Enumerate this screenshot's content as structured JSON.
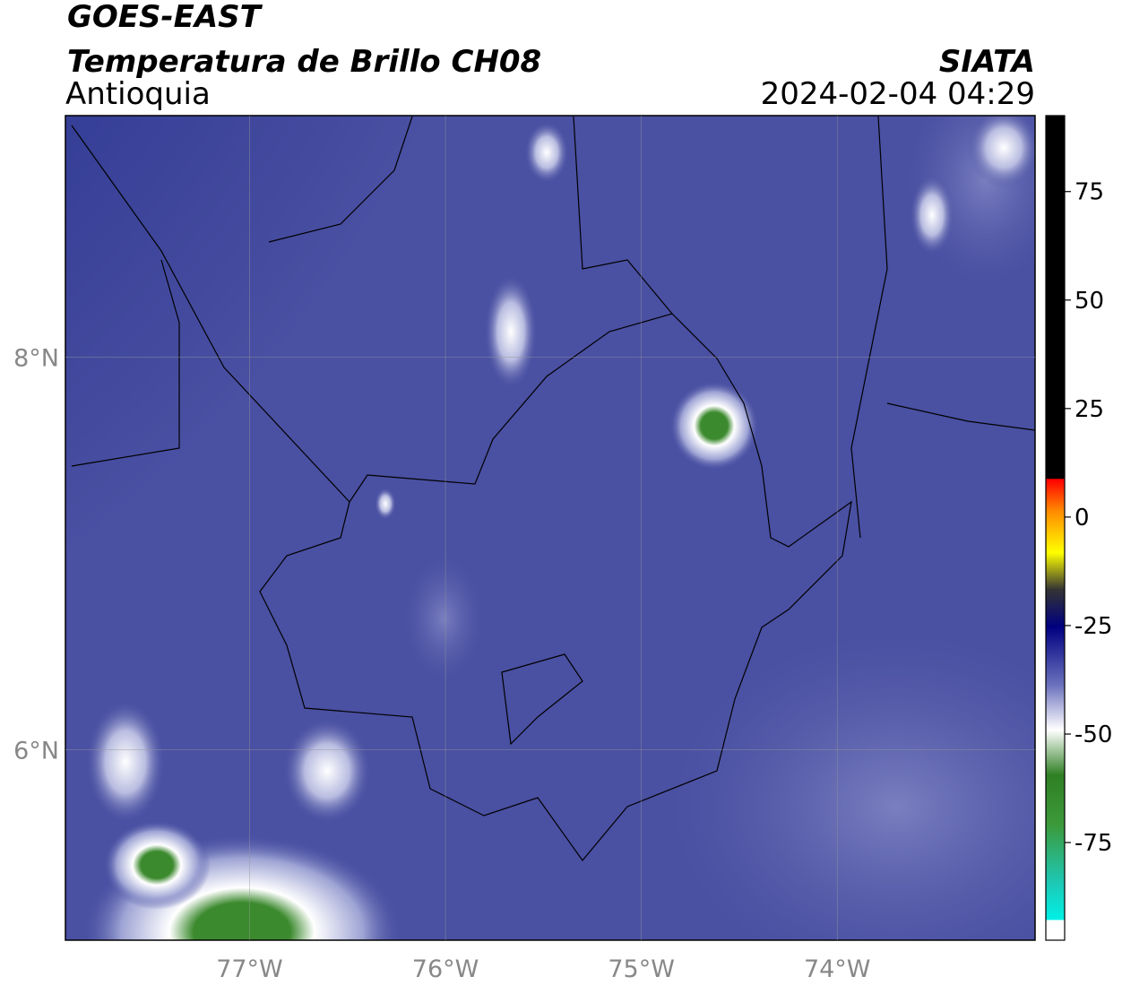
{
  "header": {
    "title": "GOES-EAST",
    "subtitle": "Temperatura de Brillo CH08",
    "region": "Antioquia",
    "source": "SIATA",
    "datetime": "2024-02-04 04:29"
  },
  "map": {
    "xlim": [
      -77.94,
      -72.99
    ],
    "ylim": [
      5.03,
      9.23
    ],
    "xticks": [
      {
        "value": -77,
        "label": "77°W"
      },
      {
        "value": -76,
        "label": "76°W"
      },
      {
        "value": -75,
        "label": "75°W"
      },
      {
        "value": -74,
        "label": "74°W"
      }
    ],
    "yticks": [
      {
        "value": 8,
        "label": "8°N"
      },
      {
        "value": 6,
        "label": "6°N"
      }
    ],
    "grid": true
  },
  "colorbar": {
    "lim": [
      -97.5,
      92.5
    ],
    "ticks": [
      75,
      50,
      25,
      0,
      -25,
      -50,
      -75
    ]
  }
}
